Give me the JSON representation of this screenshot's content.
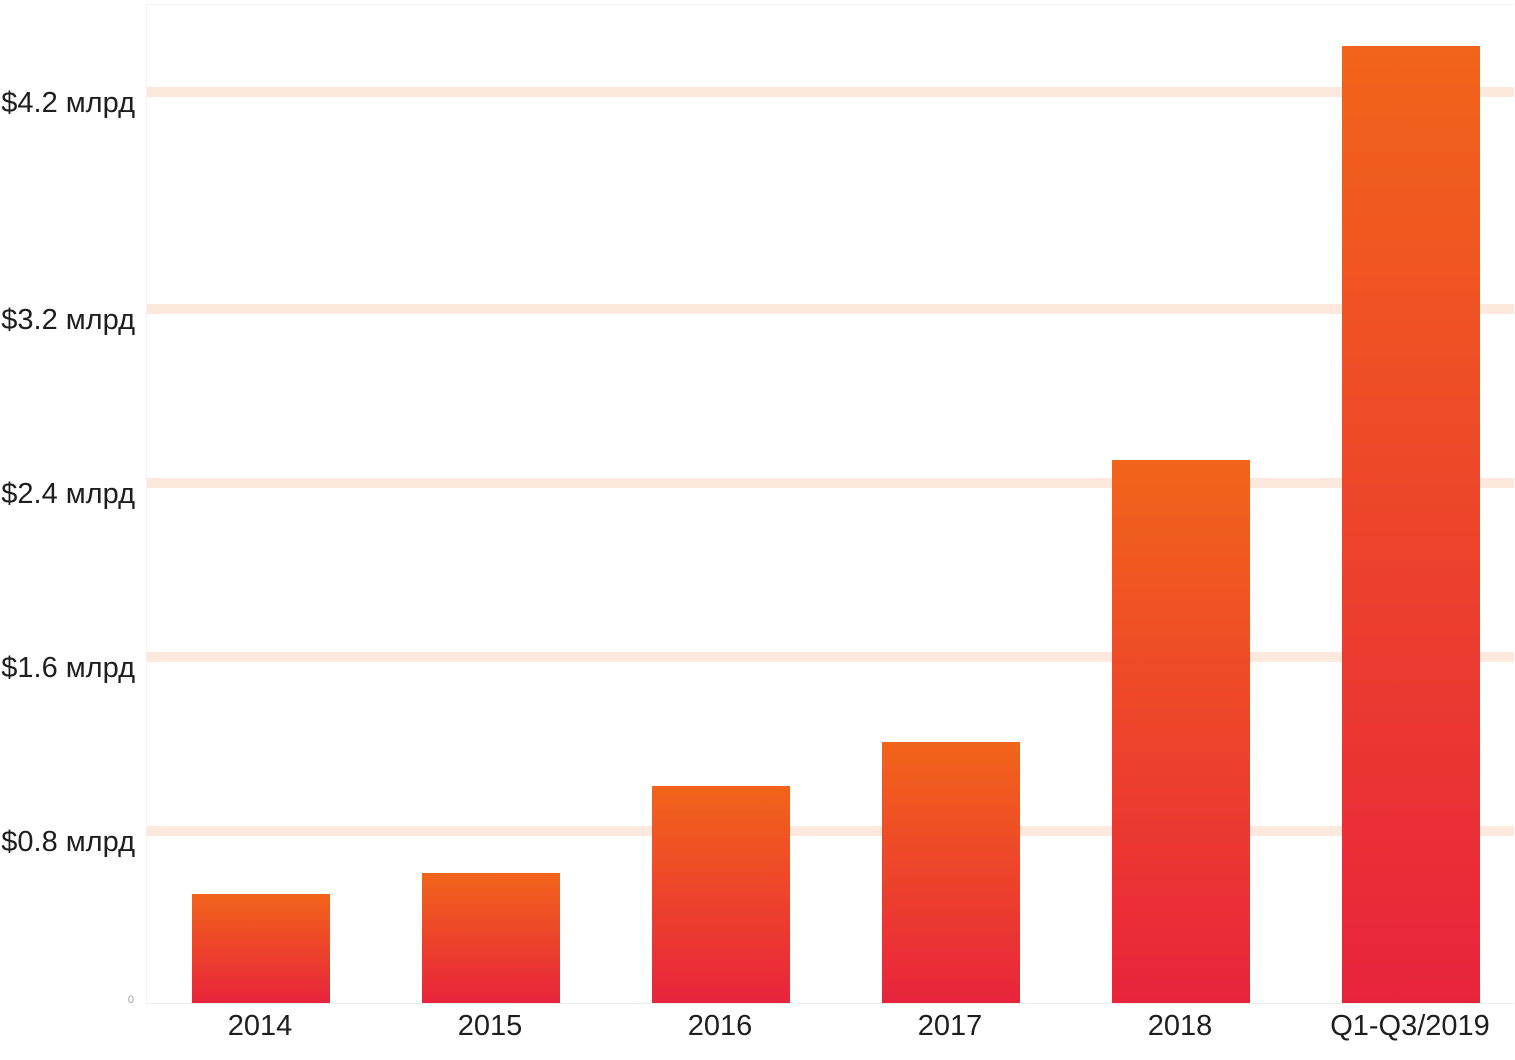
{
  "chart_data": {
    "type": "bar",
    "title": "",
    "categories": [
      "2014",
      "2015",
      "2016",
      "2017",
      "2018",
      "Q1-Q3/2019"
    ],
    "values": [
      0.5,
      0.6,
      1.0,
      1.2,
      2.5,
      4.4
    ],
    "y_ticks": [
      {
        "value": 0.8,
        "label": "$0.8 млрд"
      },
      {
        "value": 1.6,
        "label": "$1.6 млрд"
      },
      {
        "value": 2.4,
        "label": "$2.4 млрд"
      },
      {
        "value": 3.2,
        "label": "$3.2 млрд"
      },
      {
        "value": 4.2,
        "label": "$4.2 млрд"
      }
    ],
    "origin_label": "0",
    "xlabel": "",
    "ylabel": "",
    "ylim": [
      0,
      4.6
    ],
    "grid": true,
    "legend": false,
    "colors": {
      "bar_gradient_top": "#f2641a",
      "bar_gradient_bottom": "#e8243c",
      "gridline": "#fce8dc",
      "axis_border": "#f2f2f2",
      "text": "#1e1e1e",
      "muted_text": "#9e9e9e"
    }
  }
}
